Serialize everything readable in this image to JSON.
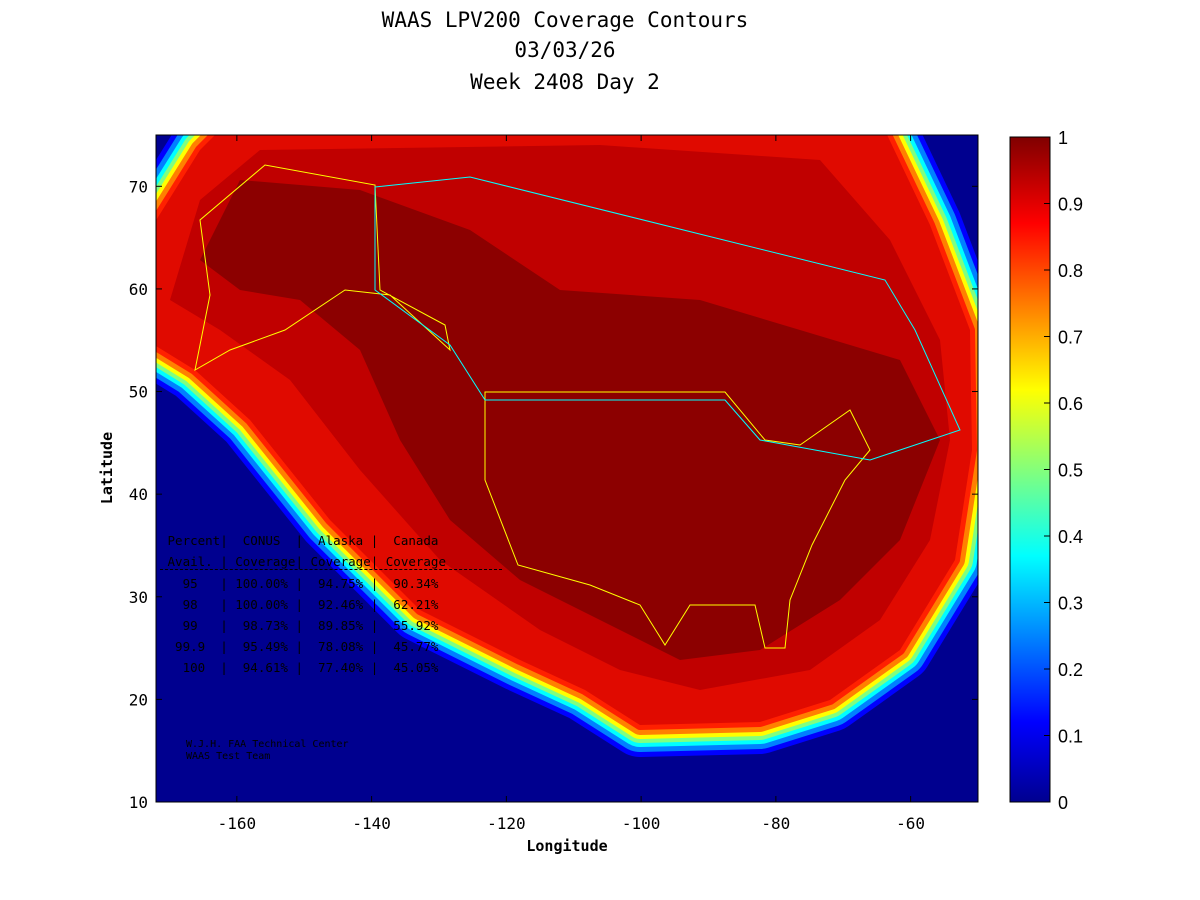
{
  "chart_data": {
    "type": "heatmap",
    "title": [
      "WAAS LPV200 Coverage Contours",
      "03/03/26",
      "Week 2408 Day 2"
    ],
    "xlabel": "Longitude",
    "ylabel": "Latitude",
    "xlim": [
      -172,
      -50
    ],
    "ylim": [
      10,
      75
    ],
    "xticks": [
      -160,
      -140,
      -120,
      -100,
      -80,
      -60
    ],
    "yticks": [
      10,
      20,
      30,
      40,
      50,
      60,
      70
    ],
    "colorbar": {
      "range": [
        0,
        1
      ],
      "ticks": [
        "0",
        "0.1",
        "0.2",
        "0.3",
        "0.4",
        "0.5",
        "0.6",
        "0.7",
        "0.8",
        "0.9",
        "1"
      ],
      "colormap": "jet"
    },
    "table": {
      "header1": [
        "Percent",
        "CONUS",
        "Alaska",
        "Canada"
      ],
      "header2": [
        "Avail.",
        "Coverage",
        "Coverage",
        "Coverage"
      ],
      "rows": [
        [
          "95",
          "100.00%",
          "94.75%",
          "90.34%"
        ],
        [
          "98",
          "100.00%",
          "92.46%",
          "62.21%"
        ],
        [
          "99",
          "98.73%",
          "89.85%",
          "55.92%"
        ],
        [
          "99.9",
          "95.49%",
          "78.08%",
          "45.77%"
        ],
        [
          "100",
          "94.61%",
          "77.40%",
          "45.05%"
        ]
      ]
    },
    "credit": [
      "W.J.H. FAA Technical Center",
      "WAAS Test Team"
    ]
  }
}
